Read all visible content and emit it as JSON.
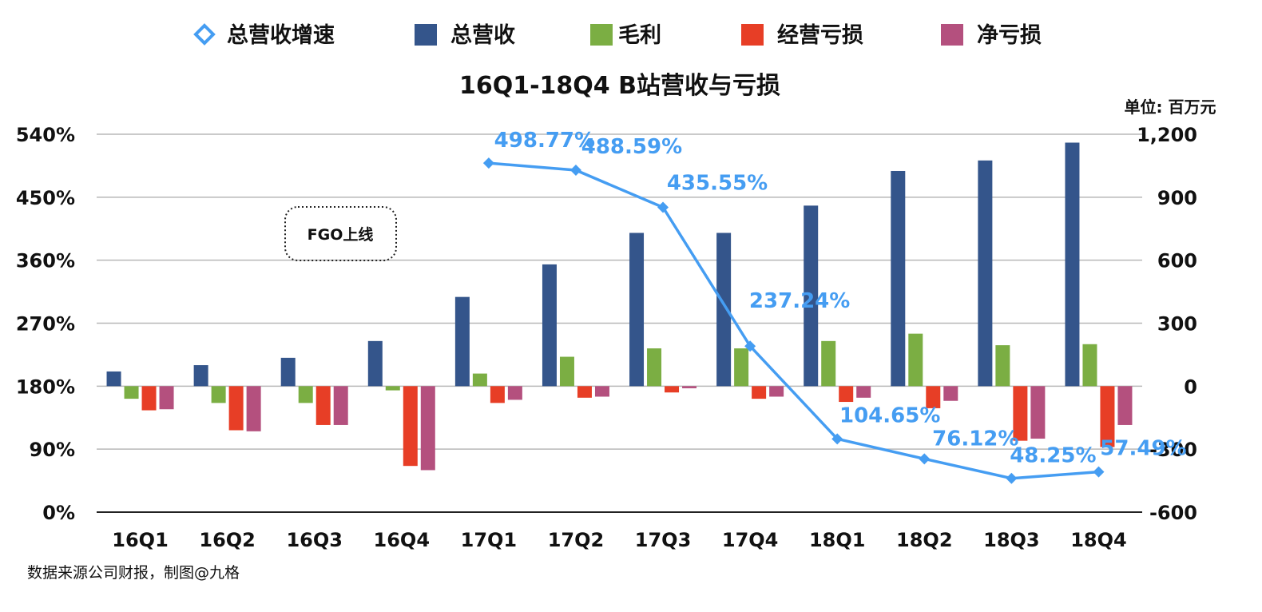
{
  "chart_data": {
    "type": "bar",
    "title": "16Q1-18Q4 B站营收与亏损",
    "unit_label": "单位: 百万元",
    "source": "数据来源公司财报，制图@九格",
    "annotation": "FGO上线",
    "categories": [
      "16Q1",
      "16Q2",
      "16Q3",
      "16Q4",
      "17Q1",
      "17Q2",
      "17Q3",
      "17Q4",
      "18Q1",
      "18Q2",
      "18Q3",
      "18Q4"
    ],
    "left_axis": {
      "ticks": [
        "540%",
        "450%",
        "360%",
        "270%",
        "180%",
        "90%",
        "0%"
      ],
      "ylim": [
        0,
        540
      ]
    },
    "right_axis": {
      "ticks": [
        "1,200",
        "900",
        "600",
        "300",
        "0",
        "-300",
        "-600"
      ],
      "ylim": [
        -600,
        1200
      ]
    },
    "legend_position": "top",
    "grid": true,
    "series": [
      {
        "name": "总营收",
        "type": "bar",
        "color": "#34558B",
        "values": [
          70,
          100,
          135,
          215,
          425,
          580,
          730,
          730,
          860,
          1025,
          1075,
          1160
        ]
      },
      {
        "name": "毛利",
        "type": "bar",
        "color": "#7BAE43",
        "values": [
          -60,
          -80,
          -80,
          -20,
          60,
          140,
          180,
          180,
          215,
          250,
          195,
          200
        ]
      },
      {
        "name": "经营亏损",
        "type": "bar",
        "color": "#E73E26",
        "values": [
          -115,
          -210,
          -185,
          -380,
          -80,
          -55,
          -30,
          -60,
          -75,
          -105,
          -260,
          -290
        ]
      },
      {
        "name": "净亏损",
        "type": "bar",
        "color": "#B4507E",
        "values": [
          -110,
          -215,
          -185,
          -400,
          -65,
          -50,
          -10,
          -50,
          -55,
          -70,
          -250,
          -185
        ]
      },
      {
        "name": "总营收增速",
        "type": "line",
        "axis": "left",
        "color": "#459DF2",
        "values": [
          null,
          null,
          null,
          null,
          498.77,
          488.59,
          435.55,
          237.24,
          104.65,
          76.12,
          48.25,
          57.49
        ],
        "labels": [
          "",
          "",
          "",
          "",
          "498.77%",
          "488.59%",
          "435.55%",
          "237.24%",
          "104.65%",
          "76.12%",
          "48.25%",
          "57.49%"
        ]
      }
    ],
    "legend": [
      {
        "name": "总营收增速",
        "color": "#459DF2",
        "marker": "diamond-icon"
      },
      {
        "name": "总营收",
        "color": "#34558B",
        "marker": "square-icon"
      },
      {
        "name": "毛利",
        "color": "#7BAE43",
        "marker": "square-icon"
      },
      {
        "name": "经营亏损",
        "color": "#E73E26",
        "marker": "square-icon"
      },
      {
        "name": "净亏损",
        "color": "#B4507E",
        "marker": "square-icon"
      }
    ]
  }
}
